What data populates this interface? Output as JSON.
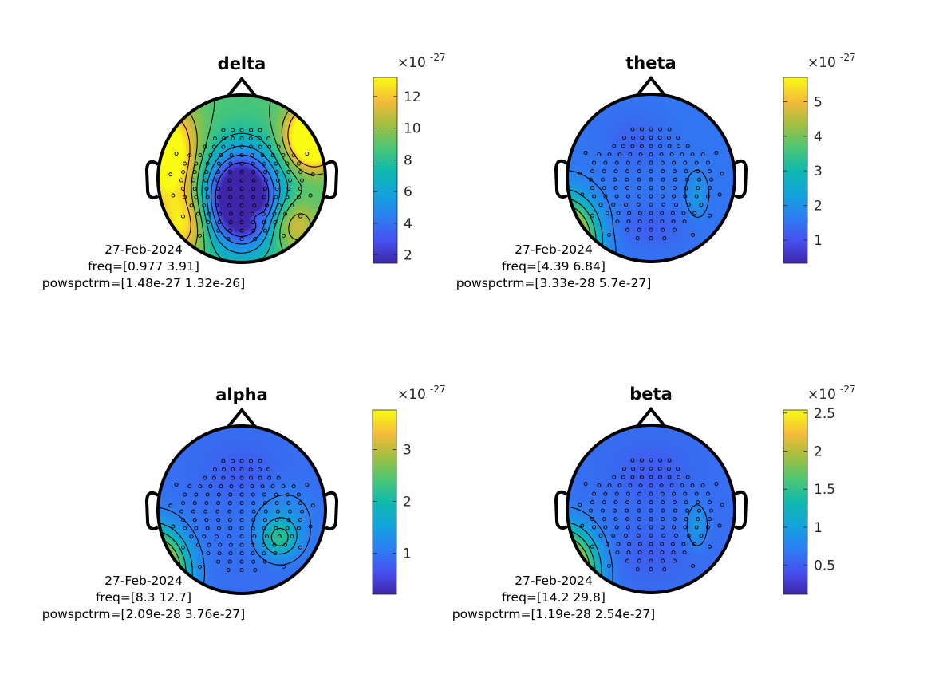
{
  "chart_data": [
    {
      "type": "topoplot",
      "title": "delta",
      "info": {
        "date": "27-Feb-2024",
        "freq": "freq=[0.977 3.91]",
        "powspctrm": "powspctrm=[1.48e-27 1.32e-26]"
      },
      "colorbar": {
        "multiplier_base": "×10",
        "multiplier_exp": "-27",
        "range": [
          1.48,
          13.2
        ],
        "ticks": [
          2,
          4,
          6,
          8,
          10,
          12
        ],
        "tick_labels": [
          "2",
          "4",
          "6",
          "8",
          "10",
          "12"
        ]
      },
      "colormap": "parula",
      "blobs": [
        {
          "x": 0.0,
          "y": -0.25,
          "sx": 0.42,
          "sy": 0.55,
          "v": -0.95
        },
        {
          "x": -0.9,
          "y": 0.3,
          "sx": 0.35,
          "sy": 0.55,
          "v": 0.55
        },
        {
          "x": 0.85,
          "y": 0.5,
          "sx": 0.3,
          "sy": 0.35,
          "v": 0.75
        },
        {
          "x": -0.7,
          "y": -0.55,
          "sx": 0.3,
          "sy": 0.4,
          "v": 0.35
        },
        {
          "x": 0.6,
          "y": -0.55,
          "sx": 0.3,
          "sy": 0.3,
          "v": 0.25
        },
        {
          "x": 0.15,
          "y": -0.45,
          "sx": 0.12,
          "sy": 0.1,
          "v": 0.2
        }
      ],
      "base": 0.62
    },
    {
      "type": "topoplot",
      "title": "theta",
      "info": {
        "date": "27-Feb-2024",
        "freq": "freq=[4.39 6.84]",
        "powspctrm": "powspctrm=[3.33e-28 5.7e-27]"
      },
      "colorbar": {
        "multiplier_base": "×10",
        "multiplier_exp": "-27",
        "range": [
          0.333,
          5.7
        ],
        "ticks": [
          1,
          2,
          3,
          4,
          5
        ],
        "tick_labels": [
          "1",
          "2",
          "3",
          "4",
          "5"
        ]
      },
      "colormap": "parula",
      "blobs": [
        {
          "x": -1.05,
          "y": -0.75,
          "sx": 0.35,
          "sy": 0.45,
          "v": 1.0
        },
        {
          "x": 0.55,
          "y": -0.2,
          "sx": 0.12,
          "sy": 0.25,
          "v": 0.12
        },
        {
          "x": 0.0,
          "y": -0.6,
          "sx": 0.4,
          "sy": 0.25,
          "v": -0.06
        },
        {
          "x": -0.2,
          "y": 0.45,
          "sx": 0.35,
          "sy": 0.3,
          "v": -0.05
        }
      ],
      "base": 0.22
    },
    {
      "type": "topoplot",
      "title": "alpha",
      "info": {
        "date": "27-Feb-2024",
        "freq": "freq=[8.3 12.7]",
        "powspctrm": "powspctrm=[2.09e-28 3.76e-27]"
      },
      "colorbar": {
        "multiplier_base": "×10",
        "multiplier_exp": "-27",
        "range": [
          0.209,
          3.76
        ],
        "ticks": [
          1,
          2,
          3
        ],
        "tick_labels": [
          "1",
          "2",
          "3"
        ]
      },
      "colormap": "parula",
      "blobs": [
        {
          "x": -1.05,
          "y": -0.75,
          "sx": 0.35,
          "sy": 0.45,
          "v": 1.0
        },
        {
          "x": 0.45,
          "y": -0.35,
          "sx": 0.22,
          "sy": 0.22,
          "v": 0.3
        },
        {
          "x": 0.5,
          "y": -0.1,
          "sx": 0.35,
          "sy": 0.35,
          "v": 0.1
        },
        {
          "x": 0.0,
          "y": 0.45,
          "sx": 0.4,
          "sy": 0.3,
          "v": -0.05
        }
      ],
      "base": 0.2
    },
    {
      "type": "topoplot",
      "title": "beta",
      "info": {
        "date": "27-Feb-2024",
        "freq": "freq=[14.2 29.8]",
        "powspctrm": "powspctrm=[1.19e-28 2.54e-27]"
      },
      "colorbar": {
        "multiplier_base": "×10",
        "multiplier_exp": "-27",
        "range": [
          0.119,
          2.54
        ],
        "ticks": [
          0.5,
          1,
          1.5,
          2,
          2.5
        ],
        "tick_labels": [
          "0.5",
          "1",
          "1.5",
          "2",
          "2.5"
        ]
      },
      "colormap": "parula",
      "blobs": [
        {
          "x": -1.05,
          "y": -0.75,
          "sx": 0.35,
          "sy": 0.45,
          "v": 1.0
        },
        {
          "x": 0.55,
          "y": -0.2,
          "sx": 0.12,
          "sy": 0.25,
          "v": 0.14
        },
        {
          "x": 0.0,
          "y": -0.55,
          "sx": 0.4,
          "sy": 0.3,
          "v": -0.04
        },
        {
          "x": 0.0,
          "y": 0.45,
          "sx": 0.4,
          "sy": 0.3,
          "v": -0.05
        }
      ],
      "base": 0.2
    }
  ],
  "colors": {
    "head_outline": "#000000",
    "background": "#ffffff",
    "text": "#000000",
    "tick_text": "#262626"
  }
}
